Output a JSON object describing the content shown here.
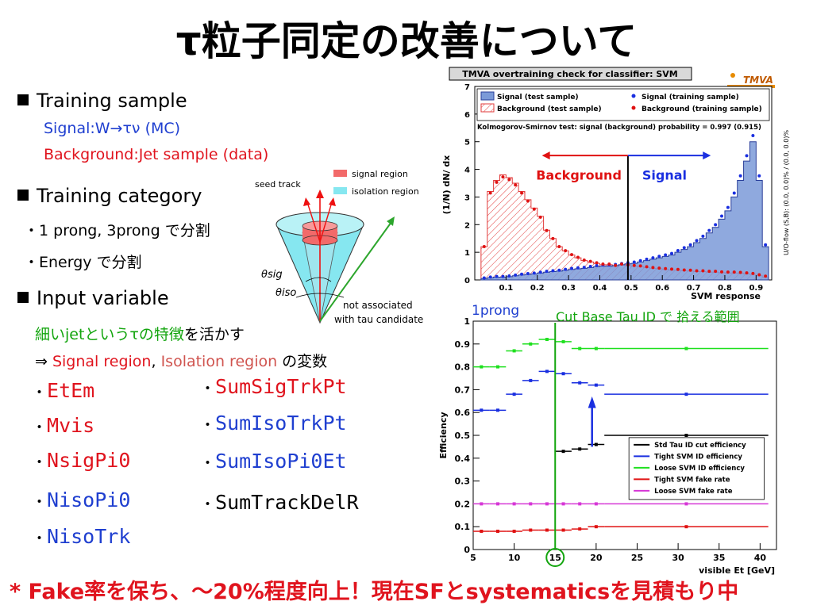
{
  "title": "τ粒子同定の改善について",
  "training_sample": {
    "heading": "Training sample",
    "signal": "Signal:W→τν (MC)",
    "background": "Background:Jet sample (data)"
  },
  "training_category": {
    "heading": "Training category",
    "items": [
      "・1 prong, 3prong で分割",
      "・Energy で分割"
    ]
  },
  "input_variable": {
    "heading": "Input variable",
    "note_green": "細いjetというτの特徴",
    "note_rest": "を活かす",
    "arrow_prefix": "⇒ ",
    "signal_region": "Signal region",
    "comma": ",",
    "isolation_region": "Isolation region",
    "suffix": " の変数",
    "vars_left": [
      "EtEm",
      "Mvis",
      "NsigPi0",
      "NisoPi0",
      "NisoTrk"
    ],
    "vars_right": [
      "SumSigTrkPt",
      "SumIsoTrkPt",
      "SumIsoPi0Et",
      "SumTrackDelR"
    ],
    "dot": "・"
  },
  "cone": {
    "seed_track": "seed track",
    "legend_signal": "signal region",
    "legend_isolation": "isolation region",
    "theta_sig": "θsig",
    "theta_iso": "θiso",
    "not_assoc_1": "not associated",
    "not_assoc_2": "with tau candidate",
    "colors": {
      "signal": "#f26a6a",
      "isolation": "#86e7f0",
      "arrow": "#2da62d"
    }
  },
  "tmva": {
    "header": "TMVA overtraining check for classifier: SVM",
    "logo": "TMVA",
    "legend": [
      "Signal (test sample)",
      "Background (test sample)",
      "Signal (training sample)",
      "Background (training sample)"
    ],
    "ks_text": "Kolmogorov-Smirnov test: signal (background) probability = 0.997 (0.915)",
    "ylabel": "(1/N) dN/ dx",
    "xlabel": "SVM response",
    "side_label": "U/O-flow (S,B): (0.0, 0.0)% / (0.0, 0.0)%",
    "bg_label": "Background",
    "sig_label": "Signal",
    "yticks": [
      "0",
      "1",
      "2",
      "3",
      "4",
      "5",
      "6",
      "7"
    ],
    "xticks": [
      "0.1",
      "0.2",
      "0.3",
      "0.4",
      "0.5",
      "0.6",
      "0.7",
      "0.8",
      "0.9"
    ]
  },
  "chart_data": [
    {
      "type": "area",
      "title": "TMVA overtraining check for classifier: SVM",
      "xlabel": "SVM response",
      "ylabel": "(1/N) dN/ dx",
      "xlim": [
        0.0,
        0.95
      ],
      "ylim": [
        0,
        7
      ],
      "x": [
        0.03,
        0.05,
        0.07,
        0.09,
        0.11,
        0.13,
        0.15,
        0.17,
        0.19,
        0.21,
        0.23,
        0.25,
        0.27,
        0.29,
        0.31,
        0.33,
        0.35,
        0.37,
        0.39,
        0.41,
        0.43,
        0.45,
        0.47,
        0.49,
        0.51,
        0.53,
        0.55,
        0.57,
        0.59,
        0.61,
        0.63,
        0.65,
        0.67,
        0.69,
        0.71,
        0.73,
        0.75,
        0.77,
        0.79,
        0.81,
        0.83,
        0.85,
        0.87,
        0.89,
        0.91,
        0.93
      ],
      "series": [
        {
          "name": "Signal (test sample)",
          "values": [
            0.05,
            0.08,
            0.1,
            0.1,
            0.12,
            0.15,
            0.18,
            0.2,
            0.22,
            0.25,
            0.28,
            0.3,
            0.32,
            0.35,
            0.38,
            0.4,
            0.42,
            0.45,
            0.48,
            0.5,
            0.5,
            0.52,
            0.55,
            0.58,
            0.6,
            0.65,
            0.7,
            0.75,
            0.8,
            0.85,
            0.9,
            1.0,
            1.1,
            1.2,
            1.35,
            1.5,
            1.7,
            1.9,
            2.2,
            2.5,
            3.0,
            3.6,
            4.3,
            5.0,
            3.6,
            1.2
          ]
        },
        {
          "name": "Background (test sample)",
          "values": [
            1.2,
            3.2,
            3.6,
            3.8,
            3.7,
            3.5,
            3.2,
            2.9,
            2.6,
            2.3,
            1.8,
            1.5,
            1.2,
            1.05,
            0.9,
            0.8,
            0.7,
            0.65,
            0.6,
            0.55,
            0.55,
            0.5,
            0.55,
            0.52,
            0.5,
            0.48,
            0.45,
            0.42,
            0.4,
            0.38,
            0.36,
            0.35,
            0.33,
            0.32,
            0.3,
            0.3,
            0.28,
            0.28,
            0.26,
            0.25,
            0.25,
            0.24,
            0.22,
            0.2,
            0.15,
            0.1
          ]
        }
      ]
    },
    {
      "type": "line",
      "title": "1prong",
      "xlabel": "visible Et [GeV]",
      "ylabel": "Efficiency",
      "xlim": [
        5,
        42
      ],
      "ylim": [
        0,
        1
      ],
      "xticks": [
        "5",
        "10",
        "15",
        "20",
        "25",
        "30",
        "35",
        "40"
      ],
      "yticks": [
        "0",
        "0.1",
        "0.2",
        "0.3",
        "0.4",
        "0.5",
        "0.6",
        "0.7",
        "0.8",
        "0.9",
        "1"
      ],
      "series": [
        {
          "name": "Std Tau ID cut efficiency",
          "segments": [
            [
              15,
              17,
              0.43
            ],
            [
              17,
              19,
              0.44
            ],
            [
              19,
              21,
              0.46
            ],
            [
              21,
              41,
              0.5
            ]
          ]
        },
        {
          "name": "Tight SVM ID efficiency",
          "segments": [
            [
              5,
              7,
              0.61
            ],
            [
              7,
              9,
              0.61
            ],
            [
              9,
              11,
              0.68
            ],
            [
              11,
              13,
              0.74
            ],
            [
              13,
              15,
              0.78
            ],
            [
              15,
              17,
              0.77
            ],
            [
              17,
              19,
              0.73
            ],
            [
              19,
              21,
              0.72
            ],
            [
              21,
              41,
              0.68
            ]
          ]
        },
        {
          "name": "Loose SVM ID efficiency",
          "segments": [
            [
              5,
              7,
              0.8
            ],
            [
              7,
              9,
              0.8
            ],
            [
              9,
              11,
              0.87
            ],
            [
              11,
              13,
              0.9
            ],
            [
              13,
              15,
              0.92
            ],
            [
              15,
              17,
              0.91
            ],
            [
              17,
              19,
              0.88
            ],
            [
              19,
              21,
              0.88
            ],
            [
              21,
              41,
              0.88
            ]
          ]
        },
        {
          "name": "Tight SVM fake rate",
          "segments": [
            [
              5,
              7,
              0.08
            ],
            [
              7,
              9,
              0.08
            ],
            [
              9,
              11,
              0.08
            ],
            [
              11,
              13,
              0.085
            ],
            [
              13,
              15,
              0.085
            ],
            [
              15,
              17,
              0.085
            ],
            [
              17,
              19,
              0.09
            ],
            [
              19,
              21,
              0.1
            ],
            [
              21,
              41,
              0.1
            ]
          ]
        },
        {
          "name": "Loose SVM fake rate",
          "segments": [
            [
              5,
              7,
              0.2
            ],
            [
              7,
              9,
              0.2
            ],
            [
              9,
              11,
              0.2
            ],
            [
              11,
              13,
              0.2
            ],
            [
              13,
              15,
              0.2
            ],
            [
              15,
              17,
              0.2
            ],
            [
              17,
              19,
              0.2
            ],
            [
              19,
              21,
              0.2
            ],
            [
              21,
              41,
              0.2
            ]
          ]
        }
      ]
    }
  ],
  "eff": {
    "prong_label": "1prong",
    "cut_label": "Cut Base Tau ID で 拾える範囲",
    "ylabel": "Efficiency",
    "xlabel": "visible Et [GeV]",
    "legend": [
      "Std Tau ID cut efficiency",
      "Tight SVM ID efficiency",
      "Loose SVM ID efficiency",
      "Tight SVM fake rate",
      "Loose SVM fake rate"
    ],
    "colors": [
      "#000000",
      "#1a2fe0",
      "#1ee01e",
      "#e01212",
      "#d636d6"
    ]
  },
  "footer": "* Fake率を保ち、～20%程度向上！現在SFとsystematicsを見積もり中"
}
